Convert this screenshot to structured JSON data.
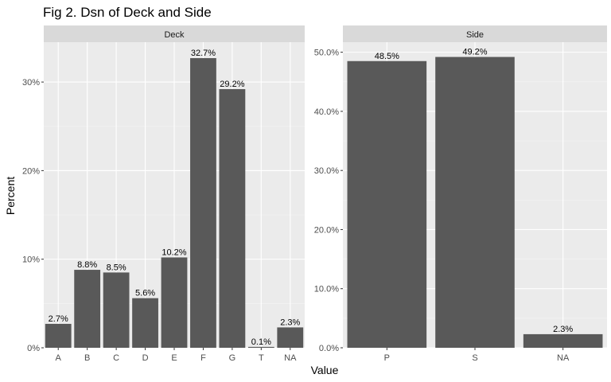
{
  "chart_data": {
    "type": "bar",
    "title": "Fig 2. Dsn of Deck and Side",
    "xlabel": "Value",
    "ylabel": "Percent",
    "colors": {
      "bar": "#595959",
      "panel_bg": "#ebebeb",
      "strip_bg": "#d9d9d9",
      "grid_major": "#ffffff",
      "grid_minor": "#f4f4f4"
    },
    "panels": [
      {
        "strip": "Deck",
        "categories": [
          "A",
          "B",
          "C",
          "D",
          "E",
          "F",
          "G",
          "T",
          "NA"
        ],
        "values": [
          2.7,
          8.8,
          8.5,
          5.6,
          10.2,
          32.7,
          29.2,
          0.1,
          2.3
        ],
        "labels": [
          "2.7%",
          "8.8%",
          "8.5%",
          "5.6%",
          "10.2%",
          "32.7%",
          "29.2%",
          "0.1%",
          "2.3%"
        ],
        "yticks": [
          0,
          10,
          20,
          30
        ],
        "ytick_labels": [
          "0%",
          "10%",
          "20%",
          "30%"
        ],
        "ylim": [
          0,
          34.5
        ]
      },
      {
        "strip": "Side",
        "categories": [
          "P",
          "S",
          "NA"
        ],
        "values": [
          48.5,
          49.2,
          2.3
        ],
        "labels": [
          "48.5%",
          "49.2%",
          "2.3%"
        ],
        "yticks": [
          0,
          10,
          20,
          30,
          40,
          50
        ],
        "ytick_labels": [
          "0.0%",
          "10.0%",
          "20.0%",
          "30.0%",
          "40.0%",
          "50.0%"
        ],
        "ylim": [
          0,
          51.7
        ]
      }
    ]
  }
}
